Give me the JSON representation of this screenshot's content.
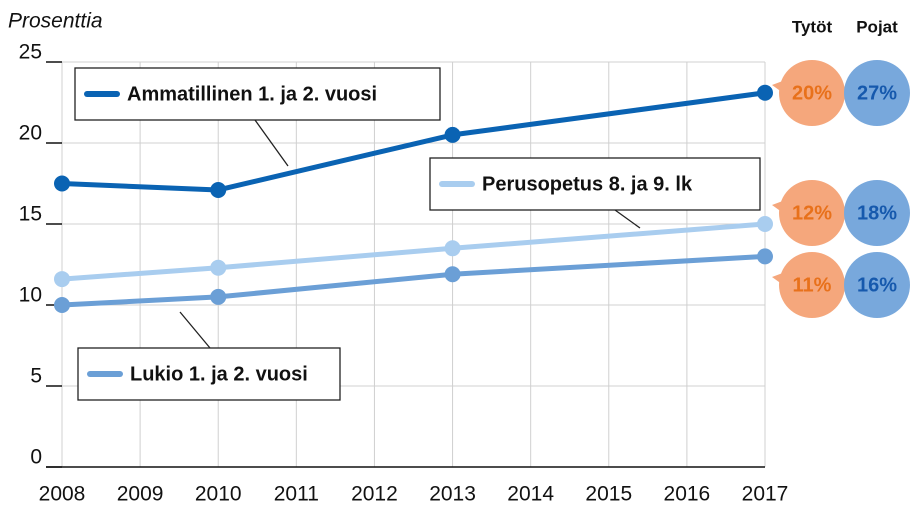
{
  "chart_data": {
    "type": "line",
    "y_axis_label": "Prosenttia",
    "x": [
      2008,
      2010,
      2013,
      2017
    ],
    "xlim": [
      2008,
      2017
    ],
    "xticks": [
      2008,
      2009,
      2010,
      2011,
      2012,
      2013,
      2014,
      2015,
      2016,
      2017
    ],
    "ylim": [
      0,
      25
    ],
    "yticks": [
      0,
      5,
      10,
      15,
      20,
      25
    ],
    "grid": true,
    "series": [
      {
        "name": "Ammatillinen 1. ja 2. vuosi",
        "color": "#0a63b3",
        "values": [
          17.5,
          17.1,
          20.5,
          23.1
        ]
      },
      {
        "name": "Perusopetus 8. ja 9. lk",
        "color": "#a9cdef",
        "values": [
          11.6,
          12.3,
          13.5,
          15.0
        ]
      },
      {
        "name": "Lukio 1. ja 2. vuosi",
        "color": "#6b9fd6",
        "values": [
          10.0,
          10.5,
          11.9,
          13.0
        ]
      }
    ],
    "side_labels": [
      {
        "name": "Tytöt",
        "color": "#f5a77c",
        "text_color": "#e8711b",
        "values": [
          20,
          12,
          11
        ],
        "value_labels": [
          "20%",
          "12%",
          "11%"
        ]
      },
      {
        "name": "Pojat",
        "color": "#78a8dc",
        "text_color": "#1659ad",
        "values": [
          27,
          18,
          16
        ],
        "value_labels": [
          "27%",
          "18%",
          "16%"
        ]
      }
    ]
  }
}
